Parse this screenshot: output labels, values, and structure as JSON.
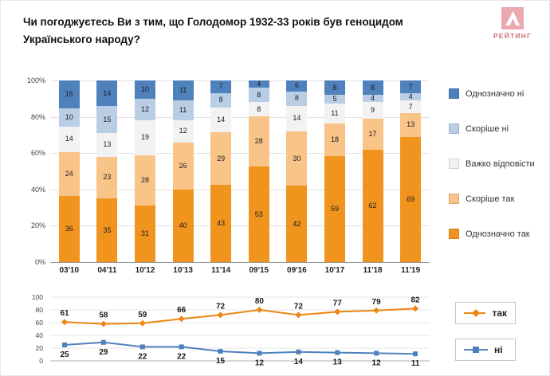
{
  "title": "Чи погоджуєтесь Ви з тим, що Голодомор 1932-33 років був геноцидом Українського народу?",
  "logo": {
    "text": "РЕЙТИНГ",
    "color": "#cf6b76",
    "mark_color": "#e9a9af"
  },
  "chart_data": [
    {
      "type": "bar",
      "stacked": true,
      "categories": [
        "03'10",
        "04'11",
        "10'12",
        "10'13",
        "11'14",
        "09'15",
        "09'16",
        "10'17",
        "11'18",
        "11'19"
      ],
      "series": [
        {
          "name": "Однозначно так",
          "color": "#f0941d",
          "values": [
            36,
            35,
            31,
            40,
            43,
            53,
            42,
            59,
            62,
            69
          ]
        },
        {
          "name": "Скоріше так",
          "color": "#f9c488",
          "values": [
            24,
            23,
            28,
            26,
            29,
            28,
            30,
            18,
            17,
            13
          ]
        },
        {
          "name": "Важко відповісти",
          "color": "#f2f2f2",
          "values": [
            14,
            13,
            19,
            12,
            14,
            8,
            14,
            11,
            9,
            7
          ]
        },
        {
          "name": "Скоріше ні",
          "color": "#b9cde5",
          "values": [
            10,
            15,
            12,
            11,
            8,
            8,
            8,
            5,
            4,
            4
          ]
        },
        {
          "name": "Однозначно ні",
          "color": "#4f81bd",
          "values": [
            15,
            14,
            10,
            11,
            7,
            4,
            6,
            8,
            8,
            7
          ]
        }
      ],
      "ylim": [
        0,
        100
      ],
      "yticks": [
        "0%",
        "20%",
        "40%",
        "60%",
        "80%",
        "100%"
      ],
      "grid": true,
      "legend_position": "right"
    },
    {
      "type": "line",
      "categories": [
        "03'10",
        "04'11",
        "10'12",
        "10'13",
        "11'14",
        "09'15",
        "09'16",
        "10'17",
        "11'18",
        "11'19"
      ],
      "series": [
        {
          "name": "так",
          "color": "#ee8512",
          "marker": "diamond",
          "label_position": "above",
          "values": [
            61,
            58,
            59,
            66,
            72,
            80,
            72,
            77,
            79,
            82
          ]
        },
        {
          "name": "ні",
          "color": "#4f81bd",
          "marker": "square",
          "label_position": "below",
          "values": [
            25,
            29,
            22,
            22,
            15,
            12,
            14,
            13,
            12,
            11
          ]
        }
      ],
      "ylim": [
        0,
        100
      ],
      "yticks": [
        0,
        20,
        40,
        60,
        80,
        100
      ],
      "grid": true,
      "legend_position": "right"
    }
  ]
}
